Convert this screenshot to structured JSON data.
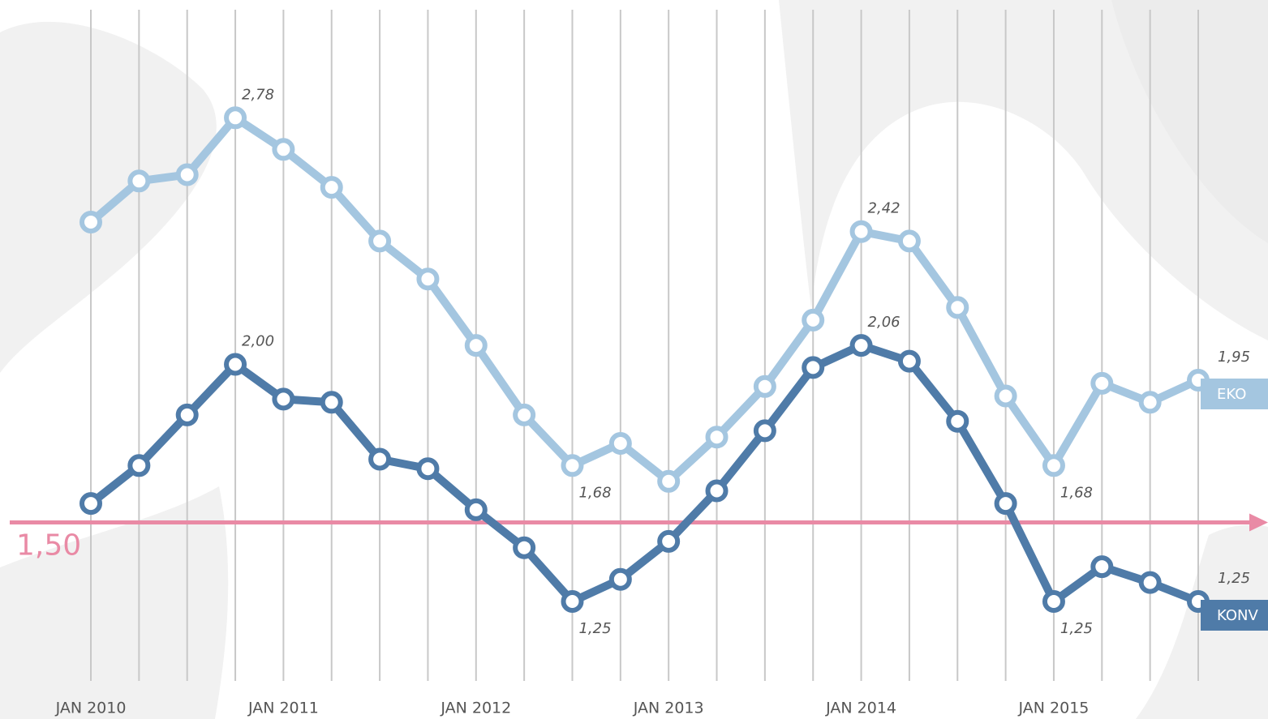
{
  "chart_data": {
    "type": "line",
    "categories": [
      "JAN 2010",
      null,
      null,
      null,
      "JAN 2011",
      null,
      null,
      null,
      "JAN 2012",
      null,
      null,
      null,
      "JAN 2013",
      null,
      null,
      null,
      "JAN 2014",
      null,
      null,
      null,
      "JAN 2015",
      null,
      null,
      null
    ],
    "ylim": [
      1.0,
      3.1
    ],
    "reference_line": {
      "value": 1.5,
      "label": "1,50",
      "color": "#e98aa5"
    },
    "series": [
      {
        "name": "EKO",
        "color": "#a4c6e0",
        "values": [
          2.45,
          2.58,
          2.6,
          2.78,
          2.68,
          2.56,
          2.39,
          2.27,
          2.06,
          1.84,
          1.68,
          1.75,
          1.63,
          1.77,
          1.93,
          2.14,
          2.42,
          2.39,
          2.18,
          1.9,
          1.68,
          1.94,
          1.88,
          1.95
        ],
        "value_labels": [
          null,
          null,
          null,
          "2,78",
          null,
          null,
          null,
          null,
          null,
          null,
          "1,68",
          null,
          null,
          null,
          null,
          null,
          "2,42",
          null,
          null,
          null,
          "1,68",
          null,
          null,
          "1,95"
        ]
      },
      {
        "name": "KONV",
        "color": "#4f7ba8",
        "values": [
          1.56,
          1.68,
          1.84,
          2.0,
          1.89,
          1.88,
          1.7,
          1.67,
          1.54,
          1.42,
          1.25,
          1.32,
          1.44,
          1.6,
          1.79,
          1.99,
          2.06,
          2.01,
          1.82,
          1.56,
          1.25,
          1.36,
          1.31,
          1.25
        ],
        "value_labels": [
          null,
          null,
          null,
          "2,00",
          null,
          null,
          null,
          null,
          null,
          null,
          "1,25",
          null,
          null,
          null,
          null,
          null,
          "2,06",
          null,
          null,
          null,
          "1,25",
          null,
          null,
          "1,25"
        ]
      }
    ]
  }
}
